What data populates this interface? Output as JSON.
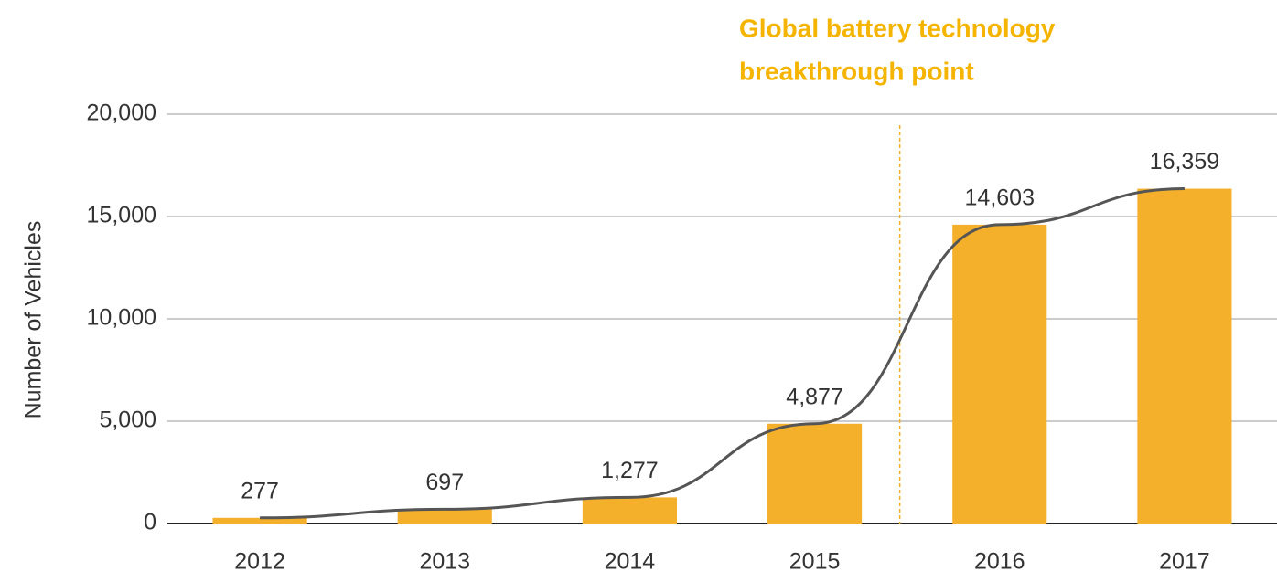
{
  "chart_data": {
    "type": "bar",
    "annotation": [
      "Global battery technology",
      "breakthrough point"
    ],
    "y_axis_label": "Number of Vehicles",
    "categories": [
      "2012",
      "2013",
      "2014",
      "2015",
      "2016",
      "2017"
    ],
    "values": [
      277,
      697,
      1277,
      4877,
      14603,
      16359
    ],
    "value_labels": [
      "277",
      "697",
      "1,277",
      "4,877",
      "14,603",
      "16,359"
    ],
    "color": "#f4af2b",
    "ylim": [
      0,
      20000
    ],
    "yticks": [
      0,
      {
        "value": 5000,
        "label": "5,000"
      },
      {
        "value": 10000,
        "label": "10,000"
      },
      {
        "value": 15000,
        "label": "15,000"
      },
      {
        "value": 20000,
        "label": "20,000"
      }
    ],
    "grid": true
  }
}
